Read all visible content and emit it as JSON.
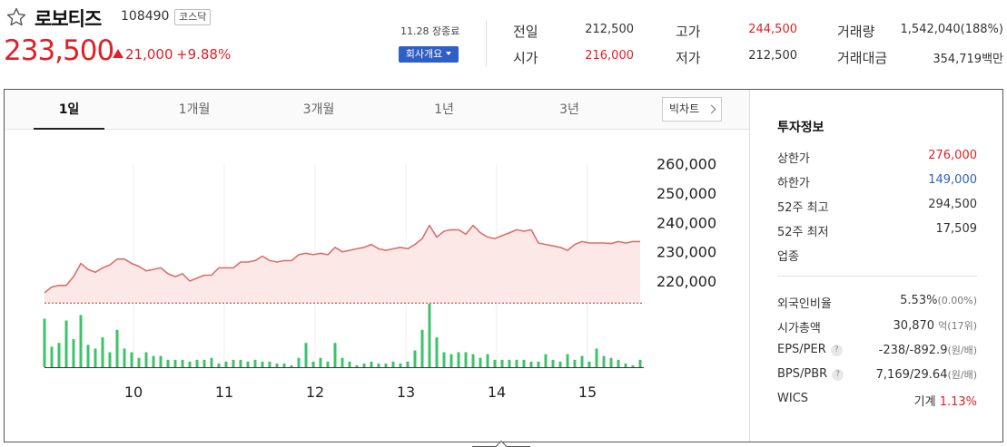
{
  "header": {
    "name": "로보티즈",
    "code": "108490",
    "market": "코스닥",
    "price": "233,500",
    "change": "21,000",
    "rate": "+9.88%",
    "close_time": "11.28 장종료",
    "company_btn": "회사개요"
  },
  "quote": {
    "prev_label": "전일",
    "prev": "212,500",
    "open_label": "시가",
    "open": "216,000",
    "high_label": "고가",
    "high": "244,500",
    "low_label": "저가",
    "low": "212,500",
    "volume_label": "거래량",
    "volume": "1,542,040(188%)",
    "amount_label": "거래대금",
    "amount": "354,719백만"
  },
  "tabs": [
    "1일",
    "1개월",
    "3개월",
    "1년",
    "3년"
  ],
  "bigchart_label": "빅차트",
  "info": {
    "title": "투자정보",
    "upper_label": "상한가",
    "upper": "276,000",
    "lower_label": "하한가",
    "lower": "149,000",
    "high52_label": "52주 최고",
    "high52": "294,500",
    "low52_label": "52주 최저",
    "low52": "17,509",
    "industry_label": "업종",
    "foreign_label": "외국인비율",
    "foreign": "5.53%",
    "foreign_sub": "(0.00%)",
    "mcap_label": "시가총액",
    "mcap": "30,870",
    "mcap_sub": "억(17위)",
    "eps_label": "EPS/PER",
    "eps": "-238/-892.9",
    "eps_sub": "(원/배)",
    "bps_label": "BPS/PBR",
    "bps": "7,169/29.64",
    "bps_sub": "(원/배)",
    "wics_label": "WICS",
    "wics": "기계",
    "wics_rate": "1.13%"
  },
  "colors": {
    "up": "#e21f26",
    "down": "#2f5ec4",
    "line": "#d9706a",
    "fill": "#fde8e8",
    "volume": "#3cc36a"
  },
  "chart_data": {
    "type": "line",
    "title": "",
    "x_ticks": [
      "10",
      "11",
      "12",
      "13",
      "14",
      "15"
    ],
    "x_tick_positions": [
      10,
      11,
      12,
      13,
      14,
      15
    ],
    "y_ticks": [
      "260,000",
      "250,000",
      "240,000",
      "230,000",
      "220,000"
    ],
    "y_tick_values": [
      260000,
      250000,
      240000,
      230000,
      220000
    ],
    "ylim": [
      213500,
      263000
    ],
    "xlim": [
      9.02,
      15.6
    ],
    "reference_price": 212500,
    "price_series": {
      "x": [
        9.02,
        9.1,
        9.18,
        9.26,
        9.34,
        9.42,
        9.5,
        9.58,
        9.66,
        9.74,
        9.82,
        9.9,
        9.98,
        10.06,
        10.14,
        10.22,
        10.3,
        10.38,
        10.46,
        10.54,
        10.62,
        10.7,
        10.78,
        10.86,
        10.94,
        11.02,
        11.1,
        11.18,
        11.26,
        11.34,
        11.42,
        11.5,
        11.58,
        11.66,
        11.74,
        11.82,
        11.9,
        11.98,
        12.06,
        12.14,
        12.22,
        12.3,
        12.38,
        12.46,
        12.54,
        12.62,
        12.7,
        12.78,
        12.86,
        12.94,
        13.02,
        13.1,
        13.18,
        13.26,
        13.34,
        13.42,
        13.5,
        13.58,
        13.66,
        13.74,
        13.82,
        13.9,
        13.98,
        14.06,
        14.14,
        14.22,
        14.3,
        14.38,
        14.46,
        14.54,
        14.62,
        14.7,
        14.78,
        14.86,
        14.94,
        15.02,
        15.1,
        15.18,
        15.26,
        15.34,
        15.42,
        15.5,
        15.58
      ],
      "y": [
        216000,
        218000,
        218500,
        218500,
        221500,
        226000,
        224000,
        223000,
        224500,
        225500,
        227500,
        227500,
        226000,
        225000,
        223500,
        224000,
        224500,
        222500,
        221500,
        222500,
        220000,
        221000,
        222000,
        222000,
        224500,
        224500,
        224500,
        226500,
        226500,
        227000,
        228500,
        227000,
        226500,
        227000,
        227000,
        229000,
        229500,
        229000,
        229500,
        229000,
        231500,
        230000,
        230500,
        231000,
        231500,
        232500,
        231000,
        230500,
        231000,
        231500,
        231000,
        232500,
        234500,
        239000,
        235000,
        237000,
        237500,
        237500,
        236000,
        239000,
        236500,
        235000,
        234500,
        235500,
        236500,
        237500,
        237000,
        237500,
        233000,
        232500,
        232000,
        231500,
        230500,
        232500,
        233500,
        233000,
        233000,
        233000,
        232800,
        233500,
        233000,
        233500,
        233500
      ]
    },
    "volume_series": {
      "x": [
        9.02,
        9.1,
        9.18,
        9.26,
        9.34,
        9.42,
        9.5,
        9.58,
        9.66,
        9.74,
        9.82,
        9.9,
        9.98,
        10.06,
        10.14,
        10.22,
        10.3,
        10.38,
        10.46,
        10.54,
        10.62,
        10.7,
        10.78,
        10.86,
        10.94,
        11.02,
        11.1,
        11.18,
        11.26,
        11.34,
        11.42,
        11.5,
        11.58,
        11.66,
        11.74,
        11.82,
        11.9,
        11.98,
        12.06,
        12.14,
        12.22,
        12.3,
        12.38,
        12.46,
        12.54,
        12.62,
        12.7,
        12.78,
        12.86,
        12.94,
        13.02,
        13.1,
        13.18,
        13.26,
        13.34,
        13.42,
        13.5,
        13.58,
        13.66,
        13.74,
        13.82,
        13.9,
        13.98,
        14.06,
        14.14,
        14.22,
        14.3,
        14.38,
        14.46,
        14.54,
        14.62,
        14.7,
        14.78,
        14.86,
        14.94,
        15.02,
        15.1,
        15.18,
        15.26,
        15.34,
        15.42,
        15.5,
        15.58
      ],
      "y": [
        52,
        22,
        26,
        50,
        30,
        56,
        24,
        20,
        32,
        16,
        40,
        20,
        16,
        10,
        16,
        12,
        12,
        8,
        8,
        8,
        6,
        8,
        8,
        10,
        4,
        6,
        8,
        8,
        6,
        8,
        6,
        6,
        4,
        4,
        2,
        10,
        26,
        6,
        10,
        6,
        26,
        10,
        6,
        2,
        4,
        6,
        4,
        4,
        6,
        4,
        6,
        18,
        40,
        68,
        32,
        16,
        14,
        16,
        16,
        14,
        10,
        14,
        8,
        8,
        8,
        8,
        8,
        6,
        6,
        14,
        8,
        6,
        14,
        8,
        12,
        6,
        20,
        12,
        10,
        8,
        4,
        2,
        8
      ]
    }
  }
}
